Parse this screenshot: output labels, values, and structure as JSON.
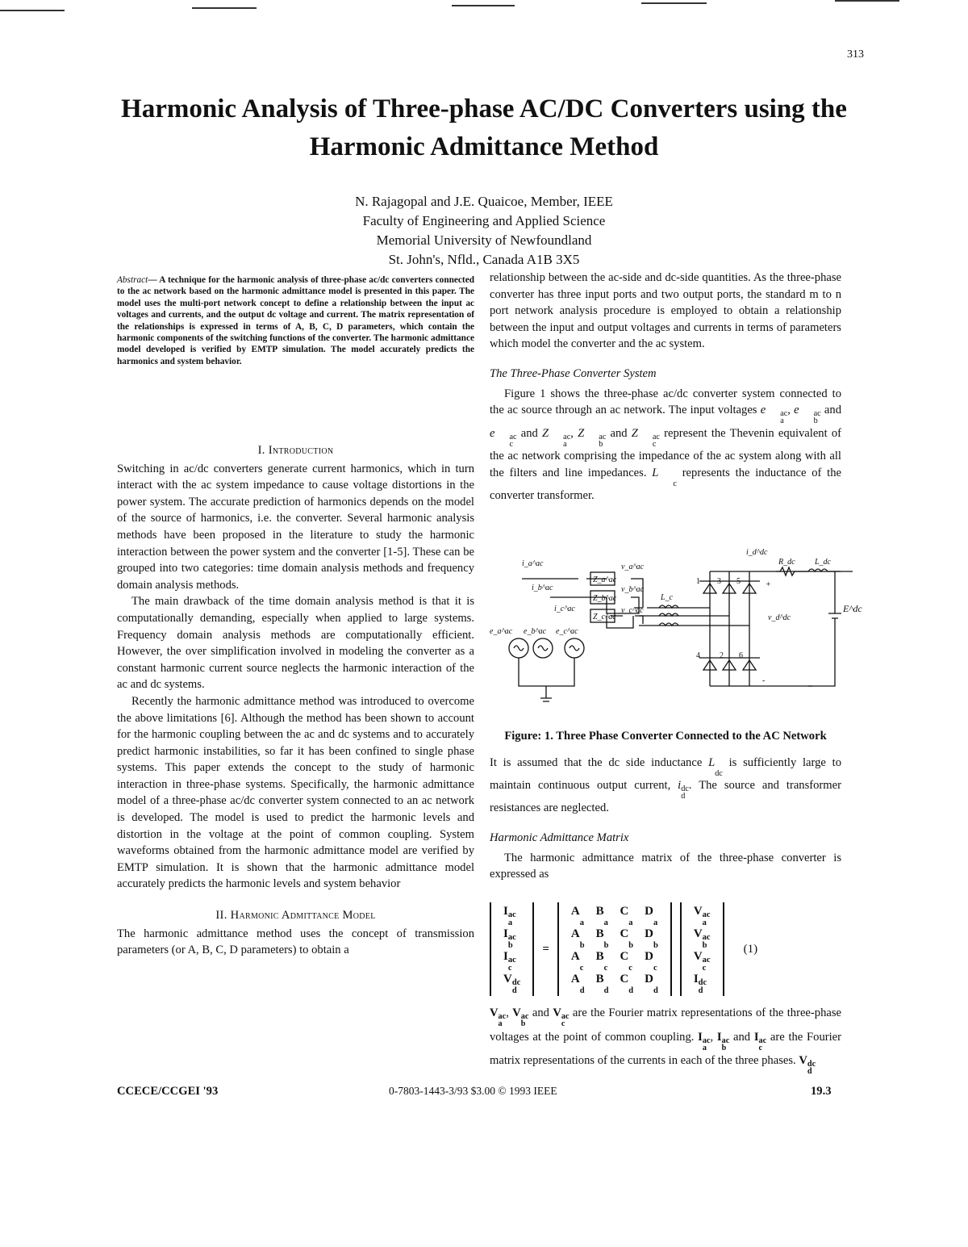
{
  "page_number": "313",
  "title": "Harmonic Analysis of Three-phase AC/DC Converters using the Harmonic Admittance Method",
  "authors": {
    "names": "N. Rajagopal and J.E. Quaicoe, Member, IEEE",
    "faculty": "Faculty of Engineering and Applied Science",
    "university": "Memorial University of Newfoundland",
    "address": "St. John's, Nfld., Canada A1B 3X5"
  },
  "abstract": {
    "label": "Abstract",
    "text": "— A technique for the harmonic analysis of three-phase ac/dc converters connected to the ac network based on the harmonic admittance model is presented in this paper. The model uses the multi-port network concept to define a relationship between the input ac voltages and currents, and the output dc voltage and current. The matrix representation of the relationships is expressed in terms of A, B, C, D parameters, which contain the harmonic components of the switching functions of the converter. The harmonic admittance model developed is verified by EMTP simulation. The model accurately predicts the harmonics and system behavior."
  },
  "intro": {
    "heading_num": "I.",
    "heading": "Introduction",
    "paragraphs": [
      "Switching in ac/dc converters generate current harmonics, which in turn interact with the ac system impedance to cause voltage distortions in the power system. The accurate prediction of harmonics depends on the model of the source of harmonics, i.e. the converter. Several harmonic analysis methods have been proposed in the literature to study the harmonic interaction between the power system and the converter [1-5]. These can be grouped into two categories: time domain analysis methods and frequency domain analysis methods.",
      "The main drawback of the time domain analysis method is that it is computationally demanding, especially when applied to large systems. Frequency domain analysis methods are computationally efficient. However, the over simplification involved in modeling the converter as a constant harmonic current source neglects the harmonic interaction of the ac and dc systems.",
      "Recently the harmonic admittance method was introduced to overcome the above limitations [6]. Although the method has been shown to account for the harmonic coupling between the ac and dc systems and to accurately predict harmonic instabilities, so far it has been confined to single phase systems. This paper extends the concept to the study of harmonic interaction in three-phase systems. Specifically, the harmonic admittance model of a three-phase ac/dc converter system connected to an ac network is developed. The model is used to predict the harmonic levels and distortion in the voltage at the point of common coupling. System waveforms obtained from the harmonic admittance model are verified by EMTP simulation. It is shown that the harmonic admittance model accurately predicts the harmonic levels and system behavior"
    ]
  },
  "model": {
    "heading_num": "II.",
    "heading": "Harmonic Admittance Model",
    "paragraph": "The harmonic admittance method uses the concept of transmission parameters (or A, B, C, D parameters) to obtain a"
  },
  "right": {
    "p1": "relationship between the ac-side and dc-side quantities. As the three-phase converter has three input ports and two output ports, the standard m to n port network analysis procedure is employed to obtain a relationship between the input and output voltages and currents in terms of parameters which model the converter and the ac system.",
    "sub1": "The Three-Phase Converter System",
    "p2": [
      "Figure 1 shows the three-phase ac/dc converter system connected to the ac source through an ac network. The input voltages ",
      {
        "b": "e",
        "sub": "a",
        "sup": "ac"
      },
      ", ",
      {
        "b": "e",
        "sub": "b",
        "sup": "ac"
      },
      " and ",
      {
        "b": "e",
        "sub": "c",
        "sup": "ac"
      },
      " and ",
      {
        "b": "Z",
        "sub": "a",
        "sup": "ac"
      },
      ", ",
      {
        "b": "Z",
        "sub": "b",
        "sup": "ac"
      },
      " and ",
      {
        "b": "Z",
        "sub": "c",
        "sup": "ac"
      },
      " represent the Thevenin equivalent of the ac network comprising the impedance of the ac system along with all the filters and line impedances. ",
      {
        "b": "L",
        "sub": "c",
        "sup": ""
      },
      " represents the inductance of the converter transformer."
    ],
    "caption": "Figure: 1. Three Phase Converter Connected to the AC Network",
    "p3": [
      "It is assumed that the dc side inductance ",
      {
        "b": "L",
        "sub": "dc",
        "sup": ""
      },
      " is sufficiently large to maintain continuous output current, ",
      {
        "b": "i",
        "sub": "d",
        "sup": "dc"
      },
      ". The source and transformer resistances are neglected."
    ],
    "sub2": "Harmonic Admittance Matrix",
    "p4": "The harmonic admittance matrix of the three-phase converter is expressed as",
    "equation": {
      "lhs": [
        {
          "b": "I",
          "sub": "a",
          "sup": "ac"
        },
        {
          "b": "I",
          "sub": "b",
          "sup": "ac"
        },
        {
          "b": "I",
          "sub": "c",
          "sup": "ac"
        },
        {
          "b": "V",
          "sub": "d",
          "sup": "dc"
        }
      ],
      "matrix": [
        [
          {
            "b": "A",
            "sub": "a"
          },
          {
            "b": "B",
            "sub": "a"
          },
          {
            "b": "C",
            "sub": "a"
          },
          {
            "b": "D",
            "sub": "a"
          }
        ],
        [
          {
            "b": "A",
            "sub": "b"
          },
          {
            "b": "B",
            "sub": "b"
          },
          {
            "b": "C",
            "sub": "b"
          },
          {
            "b": "D",
            "sub": "b"
          }
        ],
        [
          {
            "b": "A",
            "sub": "c"
          },
          {
            "b": "B",
            "sub": "c"
          },
          {
            "b": "C",
            "sub": "c"
          },
          {
            "b": "D",
            "sub": "c"
          }
        ],
        [
          {
            "b": "A",
            "sub": "d"
          },
          {
            "b": "B",
            "sub": "d"
          },
          {
            "b": "C",
            "sub": "d"
          },
          {
            "b": "D",
            "sub": "d"
          }
        ]
      ],
      "rhs": [
        {
          "b": "V",
          "sub": "a",
          "sup": "ac"
        },
        {
          "b": "V",
          "sub": "b",
          "sup": "ac"
        },
        {
          "b": "V",
          "sub": "c",
          "sup": "ac"
        },
        {
          "b": "I",
          "sub": "d",
          "sup": "dc"
        }
      ],
      "equals": "=",
      "number": "(1)"
    },
    "p5": [
      {
        "b": "V",
        "sub": "a",
        "sup": "ac"
      },
      ", ",
      {
        "b": "V",
        "sub": "b",
        "sup": "ac"
      },
      " and ",
      {
        "b": "V",
        "sub": "c",
        "sup": "ac"
      },
      " are the Fourier matrix representations of the three-phase voltages at the point of common coupling. ",
      {
        "b": "I",
        "sub": "a",
        "sup": "ac"
      },
      ", ",
      {
        "b": "I",
        "sub": "b",
        "sup": "ac"
      },
      " and ",
      {
        "b": "I",
        "sub": "c",
        "sup": "ac"
      },
      " are the Fourier matrix representations of the currents in each of the three phases. ",
      {
        "b": "V",
        "sub": "d",
        "sup": "dc"
      }
    ]
  },
  "figure": {
    "labels": {
      "ia": "i_a^ac",
      "ib": "i_b^ac",
      "ic": "i_c^ac",
      "za": "Z_a^ac",
      "zb": "Z_b^ac",
      "zc": "Z_c^ac",
      "ea": "e_a^ac",
      "eb": "e_b^ac",
      "ec": "e_c^ac",
      "va": "v_a^ac",
      "vb": "v_b^ac",
      "vc": "v_c^ac",
      "lc": "L_c",
      "rdc": "R_dc",
      "ldc": "L_dc",
      "idc": "i_d^dc",
      "vd": "v_d^dc",
      "e": "E^dc",
      "plus": "+",
      "minus": "-",
      "t1": "1",
      "t3": "3",
      "t5": "5",
      "t4": "4",
      "t2": "2",
      "t6": "6"
    }
  },
  "footer": {
    "left": "CCECE/CCGEI '93",
    "center": "0-7803-1443-3/93 $3.00 © 1993 IEEE",
    "right": "19.3"
  }
}
